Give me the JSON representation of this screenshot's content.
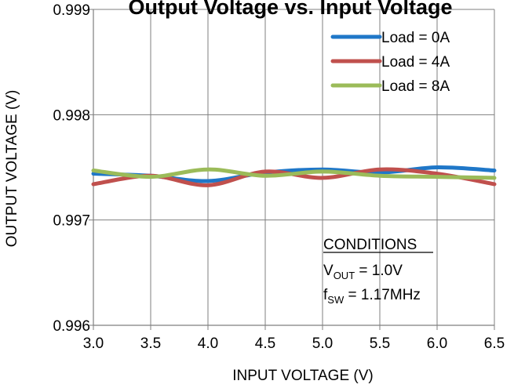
{
  "chart_data": {
    "type": "line",
    "title": "Output Voltage vs. Input Voltage",
    "xlabel": "INPUT VOLTAGE (V)",
    "ylabel": "OUTPUT VOLTAGE (V)",
    "xlim": [
      3.0,
      6.5
    ],
    "ylim": [
      0.996,
      0.999
    ],
    "xticks": [
      "3.0",
      "3.5",
      "4.0",
      "4.5",
      "5.0",
      "5.5",
      "6.0",
      "6.5"
    ],
    "yticks": [
      "0.996",
      "0.997",
      "0.998",
      "0.999"
    ],
    "grid": true,
    "legend_position": "top-right",
    "series": [
      {
        "name": "Load = 0A",
        "color": "#1f77c8",
        "x": [
          3.0,
          3.5,
          4.0,
          4.5,
          5.0,
          5.5,
          6.0,
          6.5
        ],
        "y": [
          0.99744,
          0.99742,
          0.99737,
          0.99745,
          0.99748,
          0.99745,
          0.9975,
          0.99747
        ]
      },
      {
        "name": "Load = 4A",
        "color": "#c0504d",
        "x": [
          3.0,
          3.5,
          4.0,
          4.5,
          5.0,
          5.5,
          6.0,
          6.5
        ],
        "y": [
          0.99734,
          0.99742,
          0.99733,
          0.99746,
          0.9974,
          0.99748,
          0.99744,
          0.99734
        ]
      },
      {
        "name": "Load = 8A",
        "color": "#9bbb59",
        "x": [
          3.0,
          3.5,
          4.0,
          4.5,
          5.0,
          5.5,
          6.0,
          6.5
        ],
        "y": [
          0.99747,
          0.99741,
          0.99748,
          0.99742,
          0.99746,
          0.99742,
          0.99741,
          0.9974
        ]
      }
    ],
    "annotations": {
      "conditions_title": "CONDITIONS",
      "vout_main": "V",
      "vout_sub": "OUT",
      "vout_value": " = 1.0V",
      "fsw_main": "f",
      "fsw_sub": "SW",
      "fsw_value": " = 1.17MHz"
    }
  }
}
